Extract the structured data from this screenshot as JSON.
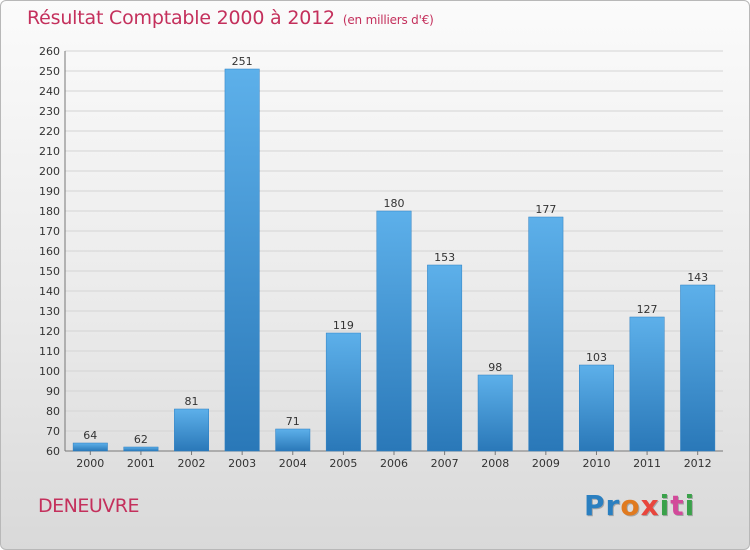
{
  "title": "Résultat Comptable 2000 à 2012",
  "unit": "(en milliers d'€)",
  "city": "DENEUVRE",
  "logo": {
    "letters": [
      "P",
      "r",
      "o",
      "x",
      "i",
      "t",
      "i"
    ],
    "colors": [
      "#2a7fc0",
      "#2a7fc0",
      "#e07a1f",
      "#e8453c",
      "#3aa14a",
      "#d24a9a",
      "#3aa14a"
    ]
  },
  "chart_data": {
    "type": "bar",
    "title": "Résultat Comptable 2000 à 2012",
    "xlabel": "",
    "ylabel": "",
    "categories": [
      "2000",
      "2001",
      "2002",
      "2003",
      "2004",
      "2005",
      "2006",
      "2007",
      "2008",
      "2009",
      "2010",
      "2011",
      "2012"
    ],
    "values": [
      64,
      62,
      81,
      251,
      71,
      119,
      180,
      153,
      98,
      177,
      103,
      127,
      143
    ],
    "ylim": [
      60,
      260
    ],
    "ytick_step": 10,
    "grid": true,
    "bar_color": "#3b8fd4"
  }
}
